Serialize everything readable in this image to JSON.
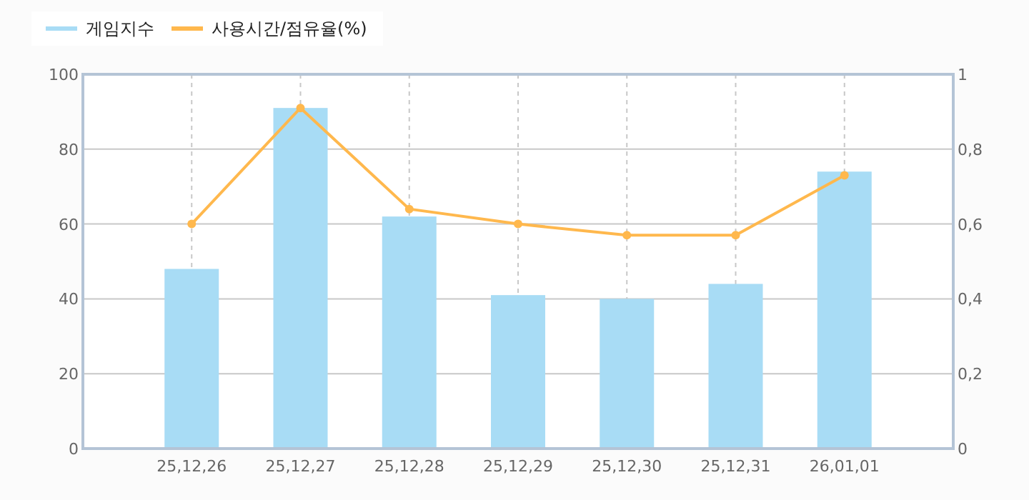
{
  "chart_data": {
    "type": "bar",
    "categories": [
      "25,12,26",
      "25,12,27",
      "25,12,28",
      "25,12,29",
      "25,12,30",
      "25,12,31",
      "26,01,01"
    ],
    "series": [
      {
        "name": "게임지수",
        "color": "#a8dcf5",
        "values": [
          48,
          91,
          62,
          41,
          40,
          44,
          74
        ]
      },
      {
        "name": "사용시간/점유율(%)",
        "type": "line",
        "axis": "y2",
        "color": "#ffb84d",
        "values": [
          0.6,
          0.91,
          0.64,
          0.6,
          0.57,
          0.57,
          0.73
        ]
      }
    ],
    "ylim": [
      0,
      100
    ],
    "yticks": [
      0,
      20,
      40,
      60,
      80,
      100
    ],
    "y2lim": [
      0,
      1
    ],
    "y2ticks": [
      {
        "value": 0,
        "label": "0"
      },
      {
        "value": 0.2,
        "label": "0,2"
      },
      {
        "value": 0.4,
        "label": "0,4"
      },
      {
        "value": 0.6,
        "label": "0,6"
      },
      {
        "value": 0.8,
        "label": "0,8"
      },
      {
        "value": 1,
        "label": "1"
      }
    ],
    "grid": true,
    "legend": "top left",
    "marker": "circle",
    "line_style": "solid"
  }
}
